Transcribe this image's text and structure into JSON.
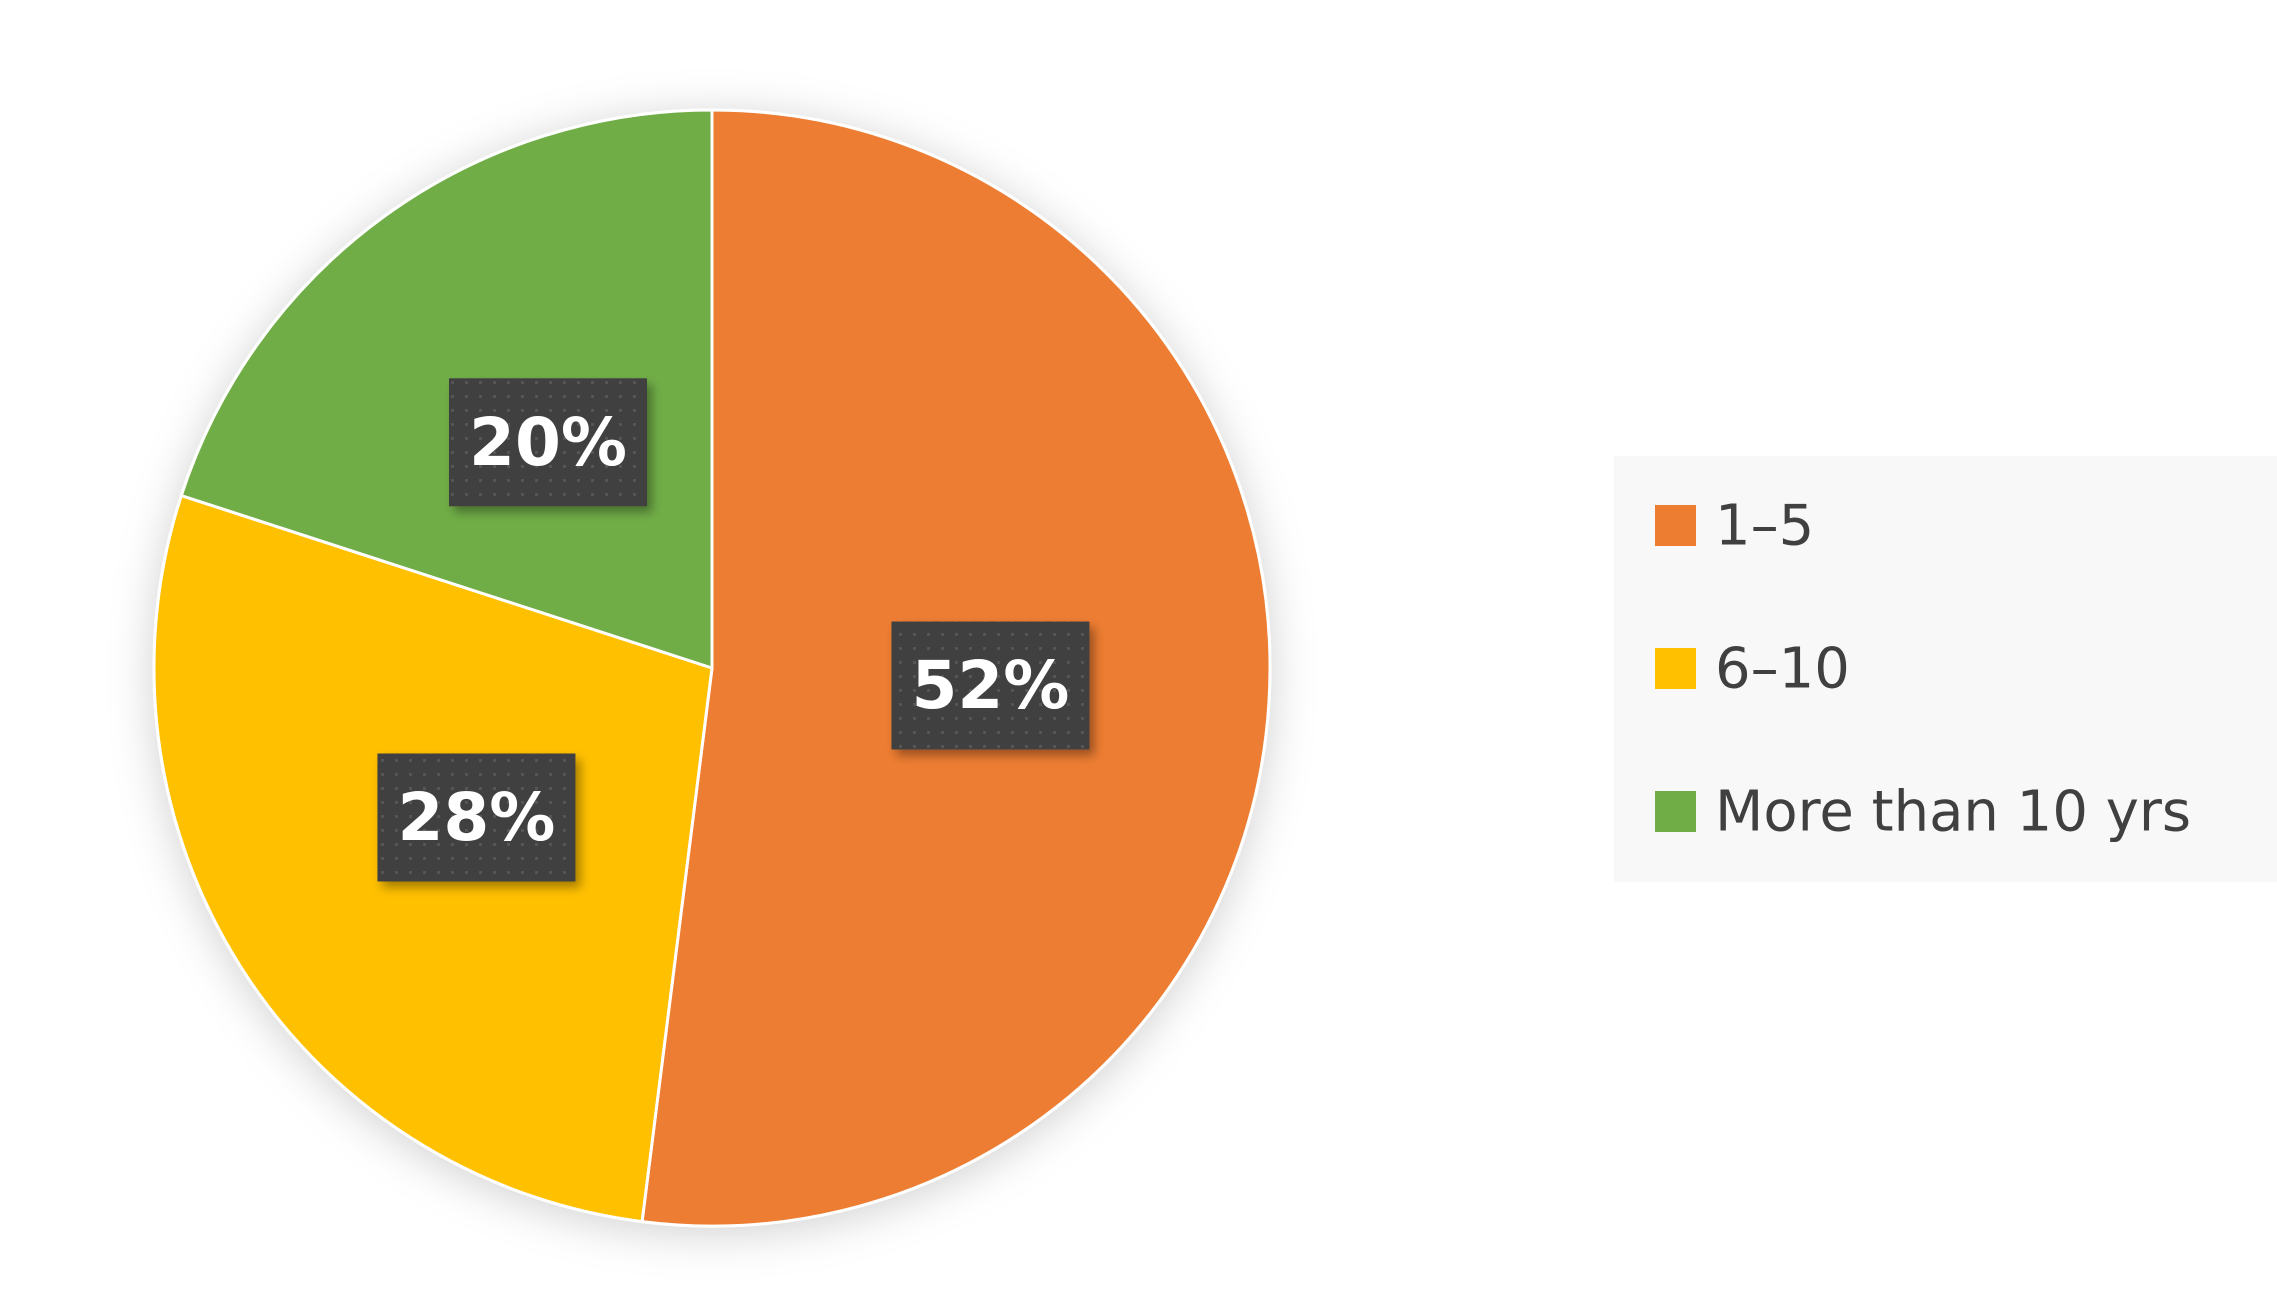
{
  "chart_data": {
    "type": "pie",
    "categories": [
      "1–5",
      "6–10",
      "More than 10 yrs"
    ],
    "values": [
      52,
      28,
      20
    ],
    "value_labels": [
      "52%",
      "28%",
      "20%"
    ],
    "colors": [
      "#ed7d31",
      "#ffc000",
      "#70ad47"
    ],
    "legend": "right"
  }
}
